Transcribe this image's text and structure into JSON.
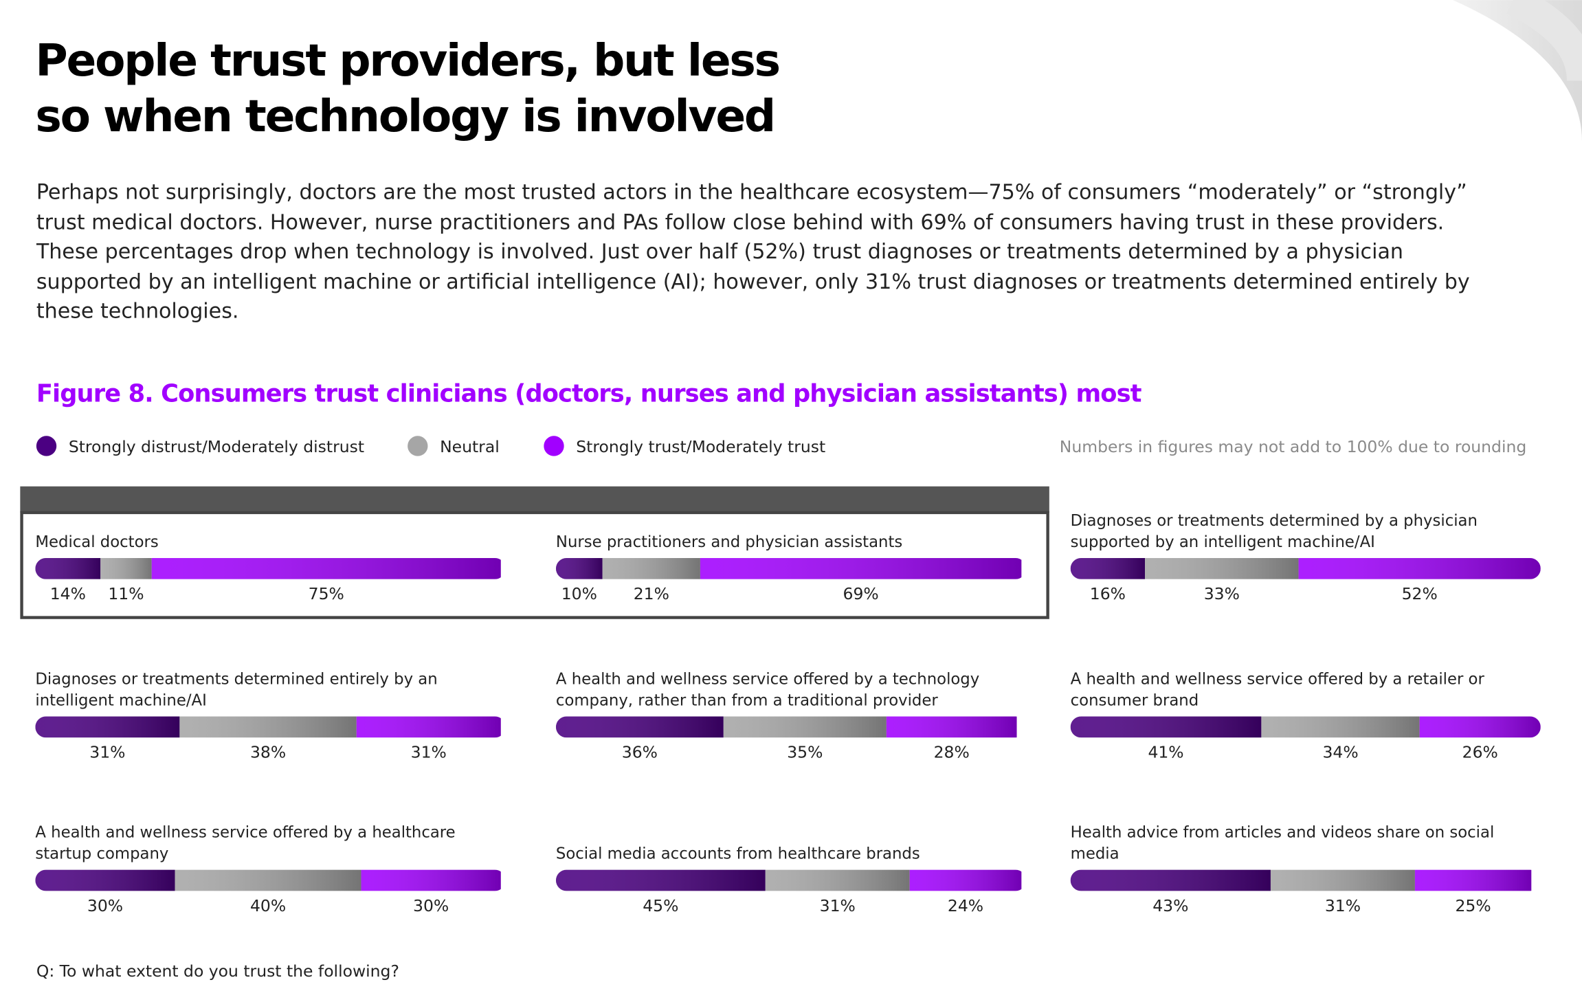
{
  "title_lines": [
    "People trust providers, but less",
    "so when technology is involved"
  ],
  "paragraph": "Perhaps not surprisingly, doctors are the most trusted actors in the healthcare ecosystem—75% of consumers “moderately” or “strongly” trust medical doctors. However, nurse practitioners and PAs follow close behind with 69% of consumers having trust in these providers. These percentages drop when technology is involved. Just over half (52%) trust diagnoses or treatments determined by a physician supported by an intelligent machine or artificial intelligence (AI); however, only 31% trust diagnoses or treatments determined entirely by these technologies.",
  "chart_data": {
    "type": "stacked-bar-panels",
    "title": "Figure 8. Consumers trust clinicians (doctors, nurses and physician assistants) most",
    "note": "Numbers in figures may not add to 100% due to rounding",
    "question": "Q: To what extent do you trust the following?",
    "categories": [
      "Medical doctors",
      "Nurse practitioners and physician assistants",
      "Diagnoses or treatments determined by a physician supported by an intelligent machine/AI",
      "Diagnoses or treatments determined entirely by an intelligent machine/AI",
      "A health and wellness service offered by a technology company, rather than from a traditional provider",
      "A health and wellness service offered by a retailer or consumer brand",
      "A health and wellness service offered by a healthcare startup company",
      "Social media accounts from healthcare brands",
      "Health advice from articles and videos share on social media"
    ],
    "series": [
      {
        "name": "Strongly distrust/Moderately distrust",
        "color": "#4b0082",
        "values": [
          14,
          10,
          16,
          31,
          36,
          41,
          30,
          45,
          43
        ],
        "value_labels": [
          "14%",
          "10%",
          "16%",
          "31%",
          "36%",
          "41%",
          "30%",
          "45%",
          "43%"
        ]
      },
      {
        "name": "Neutral",
        "color": "#a6a6a6",
        "values": [
          11,
          21,
          33,
          38,
          35,
          34,
          40,
          31,
          31
        ],
        "value_labels": [
          "11%",
          "21%",
          "33%",
          "38%",
          "35%",
          "34%",
          "40%",
          "31%",
          "31%"
        ]
      },
      {
        "name": "Strongly trust/Moderately trust",
        "color": "#a100ff",
        "values": [
          75,
          69,
          52,
          31,
          28,
          26,
          30,
          24,
          25
        ],
        "value_labels": [
          "75%",
          "69%",
          "52%",
          "31%",
          "28%",
          "26%",
          "30%",
          "24%",
          "25%"
        ]
      }
    ]
  }
}
